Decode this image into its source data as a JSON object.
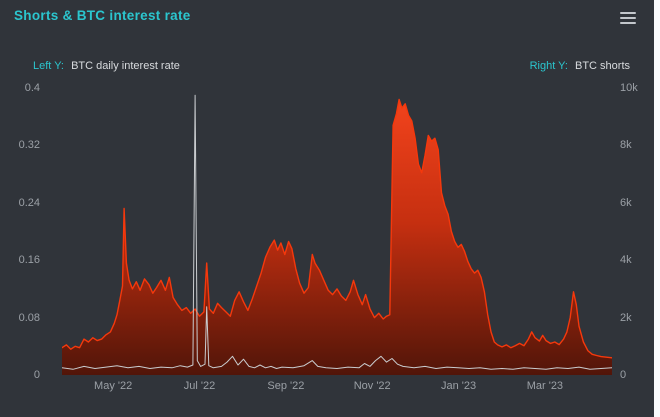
{
  "card": {
    "title": "Shorts & BTC interest rate"
  },
  "legend": {
    "left_prefix": "Left Y:",
    "left_label": "BTC daily interest rate",
    "right_prefix": "Right Y:",
    "right_label": "BTC shorts"
  },
  "colors": {
    "accent_cyan": "#2bc6ce",
    "series_red": "#f5380c",
    "series_gray": "#c9cccf",
    "background": "#30343a",
    "tick_text": "#9ba0a6"
  },
  "chart_data": {
    "type": "line",
    "title": "Shorts & BTC interest rate",
    "grid": false,
    "legend_position": "top",
    "left_axis": {
      "label": "BTC daily interest rate",
      "range": [
        0,
        0.4
      ],
      "ticks": [
        "0",
        "0.08",
        "0.16",
        "0.24",
        "0.32",
        "0.4"
      ]
    },
    "right_axis": {
      "label": "BTC shorts",
      "range": [
        0,
        10000
      ],
      "ticks": [
        "0",
        "2k",
        "4k",
        "6k",
        "8k",
        "10k"
      ]
    },
    "x_ticks": [
      {
        "label": "May '22",
        "pos": 0.093
      },
      {
        "label": "Jul '22",
        "pos": 0.25
      },
      {
        "label": "Sep '22",
        "pos": 0.407
      },
      {
        "label": "Nov '22",
        "pos": 0.564
      },
      {
        "label": "Jan '23",
        "pos": 0.721
      },
      {
        "label": "Mar '23",
        "pos": 0.878
      }
    ],
    "series": [
      {
        "name": "BTC shorts",
        "axis": "right",
        "color": "#f5380c",
        "width": 1.4,
        "area": true,
        "gradient": [
          "#f2431c",
          "#c52f10",
          "#511509"
        ],
        "points": [
          [
            0.0,
            950
          ],
          [
            0.008,
            1050
          ],
          [
            0.016,
            900
          ],
          [
            0.024,
            1000
          ],
          [
            0.032,
            950
          ],
          [
            0.04,
            1250
          ],
          [
            0.048,
            1150
          ],
          [
            0.056,
            1300
          ],
          [
            0.064,
            1200
          ],
          [
            0.072,
            1250
          ],
          [
            0.08,
            1400
          ],
          [
            0.088,
            1500
          ],
          [
            0.095,
            1800
          ],
          [
            0.1,
            2100
          ],
          [
            0.105,
            2600
          ],
          [
            0.11,
            3100
          ],
          [
            0.113,
            5800
          ],
          [
            0.117,
            3900
          ],
          [
            0.122,
            3300
          ],
          [
            0.128,
            3000
          ],
          [
            0.135,
            3250
          ],
          [
            0.142,
            2950
          ],
          [
            0.15,
            3350
          ],
          [
            0.158,
            3150
          ],
          [
            0.165,
            2850
          ],
          [
            0.172,
            3050
          ],
          [
            0.18,
            3300
          ],
          [
            0.188,
            2950
          ],
          [
            0.195,
            3400
          ],
          [
            0.202,
            2700
          ],
          [
            0.21,
            2450
          ],
          [
            0.218,
            2250
          ],
          [
            0.226,
            2350
          ],
          [
            0.234,
            2150
          ],
          [
            0.242,
            2300
          ],
          [
            0.25,
            2050
          ],
          [
            0.258,
            2200
          ],
          [
            0.263,
            3900
          ],
          [
            0.268,
            2300
          ],
          [
            0.275,
            2150
          ],
          [
            0.283,
            2500
          ],
          [
            0.29,
            2350
          ],
          [
            0.298,
            2200
          ],
          [
            0.306,
            2050
          ],
          [
            0.314,
            2600
          ],
          [
            0.322,
            2900
          ],
          [
            0.33,
            2550
          ],
          [
            0.338,
            2250
          ],
          [
            0.346,
            2650
          ],
          [
            0.354,
            3100
          ],
          [
            0.362,
            3550
          ],
          [
            0.37,
            4100
          ],
          [
            0.378,
            4450
          ],
          [
            0.386,
            4700
          ],
          [
            0.392,
            4350
          ],
          [
            0.398,
            4600
          ],
          [
            0.405,
            4200
          ],
          [
            0.412,
            4650
          ],
          [
            0.418,
            4400
          ],
          [
            0.425,
            3700
          ],
          [
            0.432,
            3200
          ],
          [
            0.44,
            2850
          ],
          [
            0.448,
            3050
          ],
          [
            0.455,
            4200
          ],
          [
            0.46,
            3900
          ],
          [
            0.468,
            3650
          ],
          [
            0.476,
            3300
          ],
          [
            0.484,
            2950
          ],
          [
            0.492,
            2800
          ],
          [
            0.5,
            3000
          ],
          [
            0.508,
            2750
          ],
          [
            0.516,
            2600
          ],
          [
            0.524,
            2900
          ],
          [
            0.53,
            3300
          ],
          [
            0.538,
            2800
          ],
          [
            0.546,
            2450
          ],
          [
            0.552,
            2800
          ],
          [
            0.56,
            2300
          ],
          [
            0.568,
            2000
          ],
          [
            0.576,
            2150
          ],
          [
            0.584,
            1950
          ],
          [
            0.59,
            2050
          ],
          [
            0.596,
            2100
          ],
          [
            0.602,
            8700
          ],
          [
            0.608,
            9100
          ],
          [
            0.613,
            9600
          ],
          [
            0.618,
            9300
          ],
          [
            0.624,
            9450
          ],
          [
            0.63,
            9050
          ],
          [
            0.636,
            8850
          ],
          [
            0.642,
            8250
          ],
          [
            0.648,
            7350
          ],
          [
            0.654,
            7050
          ],
          [
            0.66,
            7650
          ],
          [
            0.666,
            8350
          ],
          [
            0.672,
            8150
          ],
          [
            0.678,
            8250
          ],
          [
            0.684,
            7850
          ],
          [
            0.69,
            6350
          ],
          [
            0.696,
            5900
          ],
          [
            0.702,
            5600
          ],
          [
            0.708,
            5000
          ],
          [
            0.714,
            4650
          ],
          [
            0.72,
            4450
          ],
          [
            0.726,
            4550
          ],
          [
            0.732,
            4300
          ],
          [
            0.738,
            3950
          ],
          [
            0.744,
            3700
          ],
          [
            0.75,
            3550
          ],
          [
            0.756,
            3650
          ],
          [
            0.762,
            3400
          ],
          [
            0.768,
            2900
          ],
          [
            0.774,
            2100
          ],
          [
            0.78,
            1500
          ],
          [
            0.786,
            1150
          ],
          [
            0.792,
            1050
          ],
          [
            0.8,
            980
          ],
          [
            0.808,
            1050
          ],
          [
            0.816,
            950
          ],
          [
            0.824,
            1020
          ],
          [
            0.832,
            1100
          ],
          [
            0.84,
            1020
          ],
          [
            0.848,
            1250
          ],
          [
            0.854,
            1500
          ],
          [
            0.86,
            1300
          ],
          [
            0.868,
            1180
          ],
          [
            0.874,
            1380
          ],
          [
            0.88,
            1200
          ],
          [
            0.888,
            1100
          ],
          [
            0.896,
            1150
          ],
          [
            0.904,
            1060
          ],
          [
            0.912,
            1250
          ],
          [
            0.918,
            1500
          ],
          [
            0.924,
            2000
          ],
          [
            0.93,
            2900
          ],
          [
            0.935,
            2450
          ],
          [
            0.94,
            1700
          ],
          [
            0.948,
            1150
          ],
          [
            0.956,
            850
          ],
          [
            0.964,
            720
          ],
          [
            0.972,
            680
          ],
          [
            0.98,
            640
          ],
          [
            0.99,
            620
          ],
          [
            1.0,
            600
          ]
        ]
      },
      {
        "name": "BTC daily interest rate",
        "axis": "left",
        "color": "#c9cccf",
        "width": 1,
        "area": false,
        "points": [
          [
            0.0,
            0.01
          ],
          [
            0.02,
            0.008
          ],
          [
            0.04,
            0.012
          ],
          [
            0.06,
            0.009
          ],
          [
            0.08,
            0.011
          ],
          [
            0.1,
            0.013
          ],
          [
            0.12,
            0.01
          ],
          [
            0.14,
            0.012
          ],
          [
            0.16,
            0.009
          ],
          [
            0.18,
            0.011
          ],
          [
            0.2,
            0.01
          ],
          [
            0.215,
            0.013
          ],
          [
            0.228,
            0.011
          ],
          [
            0.238,
            0.014
          ],
          [
            0.242,
            0.39
          ],
          [
            0.246,
            0.02
          ],
          [
            0.252,
            0.012
          ],
          [
            0.26,
            0.015
          ],
          [
            0.263,
            0.095
          ],
          [
            0.267,
            0.013
          ],
          [
            0.275,
            0.01
          ],
          [
            0.29,
            0.012
          ],
          [
            0.3,
            0.018
          ],
          [
            0.31,
            0.026
          ],
          [
            0.32,
            0.014
          ],
          [
            0.33,
            0.022
          ],
          [
            0.34,
            0.012
          ],
          [
            0.35,
            0.01
          ],
          [
            0.36,
            0.014
          ],
          [
            0.37,
            0.01
          ],
          [
            0.38,
            0.012
          ],
          [
            0.39,
            0.009
          ],
          [
            0.4,
            0.011
          ],
          [
            0.42,
            0.01
          ],
          [
            0.44,
            0.013
          ],
          [
            0.455,
            0.02
          ],
          [
            0.465,
            0.012
          ],
          [
            0.48,
            0.01
          ],
          [
            0.5,
            0.009
          ],
          [
            0.52,
            0.011
          ],
          [
            0.54,
            0.01
          ],
          [
            0.55,
            0.016
          ],
          [
            0.56,
            0.012
          ],
          [
            0.57,
            0.02
          ],
          [
            0.58,
            0.026
          ],
          [
            0.59,
            0.018
          ],
          [
            0.6,
            0.023
          ],
          [
            0.61,
            0.015
          ],
          [
            0.62,
            0.012
          ],
          [
            0.64,
            0.01
          ],
          [
            0.66,
            0.012
          ],
          [
            0.68,
            0.009
          ],
          [
            0.7,
            0.011
          ],
          [
            0.72,
            0.01
          ],
          [
            0.74,
            0.009
          ],
          [
            0.76,
            0.01
          ],
          [
            0.78,
            0.008
          ],
          [
            0.8,
            0.009
          ],
          [
            0.82,
            0.008
          ],
          [
            0.84,
            0.01
          ],
          [
            0.86,
            0.009
          ],
          [
            0.88,
            0.008
          ],
          [
            0.9,
            0.01
          ],
          [
            0.92,
            0.009
          ],
          [
            0.94,
            0.011
          ],
          [
            0.96,
            0.008
          ],
          [
            0.98,
            0.009
          ],
          [
            1.0,
            0.01
          ]
        ]
      }
    ]
  }
}
